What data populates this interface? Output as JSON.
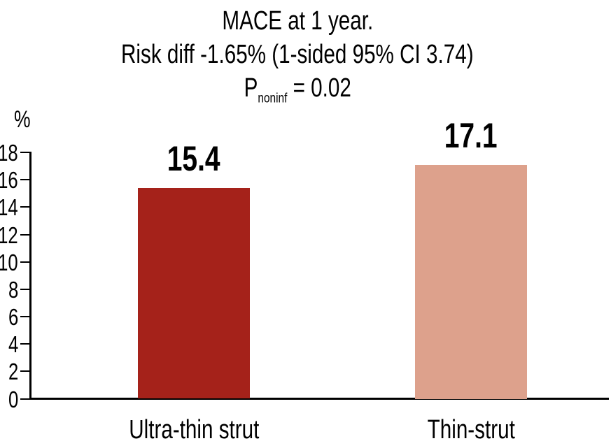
{
  "chart_data": {
    "type": "bar",
    "title_lines": [
      "MACE at 1 year.",
      "Risk diff -1.65% (1-sided 95% CI 3.74)"
    ],
    "p_line": {
      "base": "P",
      "sub": "noninf",
      "rest": " = 0.02"
    },
    "ylabel": "%",
    "categories": [
      "Ultra-thin strut",
      "Thin-strut"
    ],
    "values": [
      15.4,
      17.1
    ],
    "value_labels": [
      "15.4",
      "17.1"
    ],
    "bar_colors": [
      "#a5221a",
      "#dda18c"
    ],
    "text_color": "#000000",
    "axis_color": "#000000",
    "ylim": [
      0,
      18
    ],
    "ytick_step": 2,
    "ytick_labels": [
      "0",
      "2",
      "4",
      "6",
      "8",
      "10",
      "12",
      "14",
      "16",
      "18"
    ],
    "grid": false,
    "legend": "none"
  }
}
